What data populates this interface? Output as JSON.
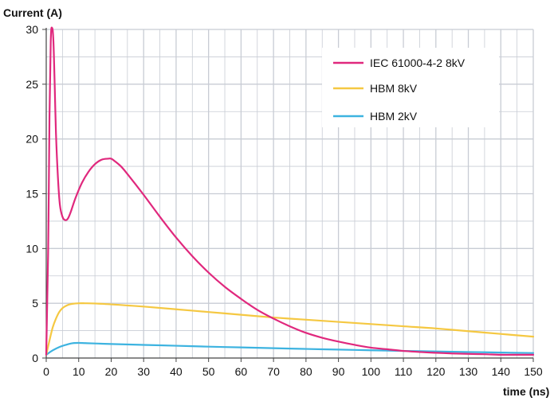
{
  "chart_data": {
    "type": "line",
    "title": "",
    "ylabel": "Current (A)",
    "xlabel": "time (ns)",
    "xlim": [
      0,
      150
    ],
    "ylim": [
      0,
      30
    ],
    "x_ticks": [
      0,
      10,
      20,
      30,
      40,
      50,
      60,
      70,
      80,
      90,
      100,
      110,
      120,
      130,
      140,
      150
    ],
    "y_ticks": [
      0,
      5,
      10,
      15,
      20,
      25,
      30
    ],
    "grid": true,
    "legend_position": "top-right",
    "series": [
      {
        "name": "IEC 61000-4-2  8kV",
        "color": "#e0287d",
        "x": [
          0,
          0.6,
          1.0,
          1.4,
          1.8,
          2.2,
          2.6,
          3.0,
          3.6,
          4.2,
          5.0,
          5.8,
          6.6,
          7.5,
          9,
          11,
          13,
          15,
          17,
          19,
          20,
          21,
          23,
          25,
          30,
          35,
          40,
          45,
          50,
          55,
          60,
          65,
          70,
          75,
          80,
          85,
          90,
          95,
          100,
          105,
          110,
          115,
          120,
          125,
          130,
          135,
          140,
          145,
          150
        ],
        "y": [
          0.3,
          10,
          22,
          29,
          30.5,
          29,
          25,
          20.5,
          16.5,
          14,
          12.9,
          12.6,
          12.7,
          13.3,
          14.6,
          16.0,
          17.0,
          17.7,
          18.1,
          18.2,
          18.2,
          18.0,
          17.5,
          16.8,
          14.9,
          12.9,
          11.0,
          9.3,
          7.8,
          6.5,
          5.4,
          4.4,
          3.6,
          2.9,
          2.3,
          1.85,
          1.5,
          1.2,
          0.95,
          0.8,
          0.65,
          0.55,
          0.48,
          0.42,
          0.38,
          0.35,
          0.3,
          0.3,
          0.3
        ]
      },
      {
        "name": "HBM  8kV",
        "color": "#f5c842",
        "x": [
          0,
          1,
          2,
          3,
          4,
          5,
          6,
          7,
          8,
          10,
          12,
          15,
          20,
          25,
          30,
          40,
          50,
          60,
          70,
          80,
          90,
          100,
          110,
          120,
          130,
          140,
          150
        ],
        "y": [
          0.3,
          1.6,
          2.8,
          3.6,
          4.2,
          4.55,
          4.75,
          4.88,
          4.95,
          5.0,
          5.0,
          4.98,
          4.9,
          4.8,
          4.7,
          4.45,
          4.2,
          3.95,
          3.7,
          3.5,
          3.3,
          3.1,
          2.9,
          2.7,
          2.45,
          2.2,
          1.95
        ]
      },
      {
        "name": "HBM  2kV",
        "color": "#3db3e0",
        "x": [
          0,
          2,
          4,
          6,
          8,
          10,
          12,
          15,
          20,
          30,
          40,
          50,
          60,
          70,
          80,
          90,
          100,
          110,
          120,
          130,
          140,
          150
        ],
        "y": [
          0.3,
          0.7,
          1.0,
          1.2,
          1.35,
          1.38,
          1.36,
          1.33,
          1.28,
          1.2,
          1.12,
          1.04,
          0.97,
          0.9,
          0.83,
          0.77,
          0.71,
          0.65,
          0.6,
          0.55,
          0.5,
          0.46
        ]
      }
    ]
  }
}
